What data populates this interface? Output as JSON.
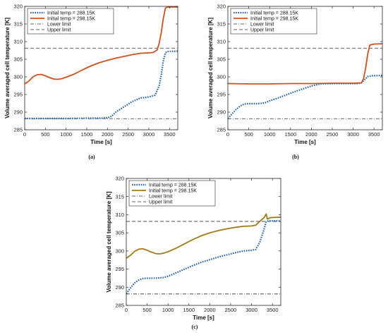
{
  "chart_data": [
    {
      "panel": "(a)",
      "type": "line",
      "xlabel": "Time [s]",
      "ylabel": "Volume averaged cell temperature [K]",
      "xlim": [
        0,
        3700
      ],
      "ylim": [
        285,
        320
      ],
      "xticks": [
        0,
        500,
        1000,
        1500,
        2000,
        2500,
        3000,
        3500
      ],
      "yticks": [
        285,
        290,
        295,
        300,
        305,
        310,
        315,
        320
      ],
      "legend_position": "top-left",
      "series": [
        {
          "name": "Initial temp = 288.15K",
          "color": "#1f63b8",
          "style": "dotted",
          "points": [
            [
              0,
              288.2
            ],
            [
              500,
              288.2
            ],
            [
              1000,
              288.2
            ],
            [
              1500,
              288.3
            ],
            [
              1800,
              288.3
            ],
            [
              2000,
              288.4
            ],
            [
              2100,
              288.8
            ],
            [
              2200,
              290.0
            ],
            [
              2400,
              291.5
            ],
            [
              2600,
              293.0
            ],
            [
              2800,
              294.0
            ],
            [
              3000,
              294.3
            ],
            [
              3150,
              294.8
            ],
            [
              3250,
              297.5
            ],
            [
              3300,
              300.5
            ],
            [
              3350,
              304.5
            ],
            [
              3400,
              306.8
            ],
            [
              3450,
              307.2
            ],
            [
              3700,
              307.3
            ]
          ]
        },
        {
          "name": "Initial temp = 298.15K",
          "color": "#d2501c",
          "style": "solid",
          "points": [
            [
              0,
              298.0
            ],
            [
              100,
              298.8
            ],
            [
              200,
              300.0
            ],
            [
              300,
              300.6
            ],
            [
              400,
              300.7
            ],
            [
              500,
              300.3
            ],
            [
              600,
              299.8
            ],
            [
              700,
              299.4
            ],
            [
              800,
              299.3
            ],
            [
              900,
              299.5
            ],
            [
              1000,
              299.9
            ],
            [
              1200,
              300.8
            ],
            [
              1400,
              302.0
            ],
            [
              1600,
              303.1
            ],
            [
              1800,
              304.0
            ],
            [
              2000,
              304.7
            ],
            [
              2200,
              305.3
            ],
            [
              2400,
              305.8
            ],
            [
              2600,
              306.3
            ],
            [
              2800,
              306.7
            ],
            [
              3000,
              306.8
            ],
            [
              3100,
              306.9
            ],
            [
              3200,
              307.6
            ],
            [
              3250,
              309.5
            ],
            [
              3300,
              312.5
            ],
            [
              3350,
              316.5
            ],
            [
              3400,
              319.5
            ],
            [
              3450,
              319.8
            ],
            [
              3700,
              319.8
            ]
          ]
        }
      ],
      "reference_lines": [
        {
          "name": "Lower limit",
          "y": 288.15,
          "style": "dashdot",
          "color": "#333333"
        },
        {
          "name": "Upper limit",
          "y": 308.15,
          "style": "dashed",
          "color": "#333333"
        }
      ]
    },
    {
      "panel": "(b)",
      "type": "line",
      "xlabel": "Time [s]",
      "ylabel": "Volume averaged cell temperature [K]",
      "xlim": [
        0,
        3700
      ],
      "ylim": [
        285,
        320
      ],
      "xticks": [
        0,
        500,
        1000,
        1500,
        2000,
        2500,
        3000,
        3500
      ],
      "yticks": [
        285,
        290,
        295,
        300,
        305,
        310,
        315,
        320
      ],
      "legend_position": "top-left",
      "series": [
        {
          "name": "Initial temp = 288.15K",
          "color": "#1f63b8",
          "style": "dotted",
          "points": [
            [
              0,
              288.2
            ],
            [
              100,
              289.5
            ],
            [
              200,
              290.8
            ],
            [
              300,
              291.8
            ],
            [
              400,
              292.3
            ],
            [
              500,
              292.4
            ],
            [
              600,
              292.4
            ],
            [
              700,
              292.4
            ],
            [
              800,
              292.5
            ],
            [
              900,
              292.7
            ],
            [
              1000,
              293.2
            ],
            [
              1200,
              294.0
            ],
            [
              1400,
              294.9
            ],
            [
              1600,
              295.8
            ],
            [
              1800,
              296.6
            ],
            [
              2000,
              297.4
            ],
            [
              2200,
              298.0
            ],
            [
              2500,
              298.1
            ],
            [
              2800,
              298.1
            ],
            [
              3100,
              298.1
            ],
            [
              3200,
              298.3
            ],
            [
              3300,
              299.5
            ],
            [
              3350,
              300.1
            ],
            [
              3450,
              300.3
            ],
            [
              3700,
              300.4
            ]
          ]
        },
        {
          "name": "Initial temp = 298.15K",
          "color": "#d2501c",
          "style": "solid",
          "points": [
            [
              0,
              298.1
            ],
            [
              500,
              298.0
            ],
            [
              1000,
              298.0
            ],
            [
              1500,
              298.1
            ],
            [
              2000,
              298.1
            ],
            [
              2500,
              298.2
            ],
            [
              3000,
              298.2
            ],
            [
              3200,
              298.3
            ],
            [
              3250,
              299.5
            ],
            [
              3300,
              302.5
            ],
            [
              3350,
              306.5
            ],
            [
              3400,
              309.0
            ],
            [
              3500,
              309.3
            ],
            [
              3700,
              309.4
            ]
          ]
        }
      ],
      "reference_lines": [
        {
          "name": "Lower limit",
          "y": 288.15,
          "style": "dashdot",
          "color": "#333333"
        },
        {
          "name": "Upper limit",
          "y": 308.15,
          "style": "dashed",
          "color": "#333333"
        }
      ]
    },
    {
      "panel": "(c)",
      "type": "line",
      "xlabel": "Time [s]",
      "ylabel": "Volume averaged cell temperature [K]",
      "xlim": [
        0,
        3700
      ],
      "ylim": [
        285,
        320
      ],
      "xticks": [
        0,
        500,
        1000,
        1500,
        2000,
        2500,
        3000,
        3500
      ],
      "yticks": [
        285,
        290,
        295,
        300,
        305,
        310,
        315,
        320
      ],
      "legend_position": "top-left",
      "series": [
        {
          "name": "Initial temp = 288.15K",
          "color": "#1f63b8",
          "style": "dotted",
          "points": [
            [
              0,
              288.2
            ],
            [
              100,
              289.8
            ],
            [
              200,
              291.2
            ],
            [
              300,
              292.0
            ],
            [
              400,
              292.4
            ],
            [
              500,
              292.5
            ],
            [
              700,
              292.5
            ],
            [
              900,
              292.7
            ],
            [
              1000,
              293.0
            ],
            [
              1200,
              294.0
            ],
            [
              1400,
              295.0
            ],
            [
              1600,
              296.0
            ],
            [
              1800,
              296.9
            ],
            [
              2000,
              297.6
            ],
            [
              2200,
              298.3
            ],
            [
              2400,
              298.9
            ],
            [
              2600,
              299.5
            ],
            [
              2800,
              300.0
            ],
            [
              3000,
              300.2
            ],
            [
              3100,
              300.4
            ],
            [
              3200,
              302.5
            ],
            [
              3300,
              306.0
            ],
            [
              3350,
              308.0
            ],
            [
              3400,
              308.3
            ],
            [
              3700,
              308.3
            ]
          ]
        },
        {
          "name": "Initial temp = 298.15K",
          "color": "#a47a18",
          "style": "solid",
          "points": [
            [
              0,
              298.0
            ],
            [
              100,
              298.8
            ],
            [
              200,
              299.9
            ],
            [
              300,
              300.5
            ],
            [
              400,
              300.6
            ],
            [
              500,
              300.2
            ],
            [
              600,
              299.7
            ],
            [
              700,
              299.3
            ],
            [
              800,
              299.2
            ],
            [
              900,
              299.4
            ],
            [
              1000,
              299.8
            ],
            [
              1200,
              300.8
            ],
            [
              1400,
              302.0
            ],
            [
              1600,
              303.2
            ],
            [
              1800,
              304.2
            ],
            [
              2000,
              305.0
            ],
            [
              2200,
              305.6
            ],
            [
              2400,
              306.1
            ],
            [
              2600,
              306.5
            ],
            [
              2800,
              306.8
            ],
            [
              3000,
              306.9
            ],
            [
              3100,
              307.1
            ],
            [
              3200,
              308.2
            ],
            [
              3300,
              309.2
            ],
            [
              3350,
              310.2
            ],
            [
              3380,
              308.8
            ],
            [
              3450,
              309.2
            ],
            [
              3700,
              309.3
            ]
          ]
        }
      ],
      "reference_lines": [
        {
          "name": "Lower limit",
          "y": 288.15,
          "style": "dashdot",
          "color": "#333333"
        },
        {
          "name": "Upper limit",
          "y": 308.15,
          "style": "dashed",
          "color": "#333333"
        }
      ]
    }
  ]
}
